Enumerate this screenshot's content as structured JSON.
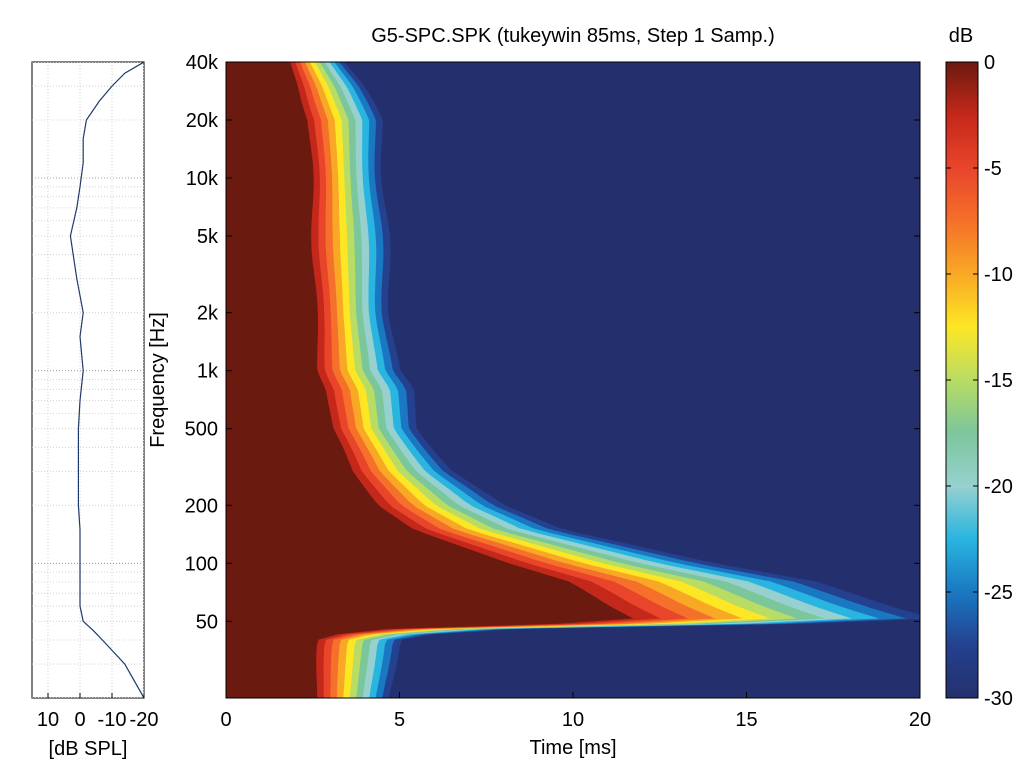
{
  "chart_data": [
    {
      "type": "line",
      "xlabel": "[dB SPL]",
      "x_ticks": [
        "10",
        "0",
        "-10",
        "-20"
      ],
      "x_tick_values": [
        10,
        0,
        -10,
        -20
      ],
      "xlim": [
        15,
        -20
      ],
      "y_scale": "log",
      "ylim": [
        20,
        40000
      ],
      "grid": true,
      "series": [
        {
          "freq": [
            20,
            30,
            40,
            45,
            50,
            60,
            80,
            100,
            150,
            200,
            300,
            500,
            700,
            1000,
            1500,
            2000,
            3000,
            5000,
            7000,
            9000,
            12000,
            16000,
            20000,
            25000,
            30000,
            35000,
            40000
          ],
          "db": [
            -20,
            -14,
            -7,
            -4,
            -1,
            0,
            0,
            0,
            0,
            0.5,
            0.5,
            0.5,
            0,
            -1,
            0,
            -1,
            1,
            3,
            1,
            0,
            -1,
            -1,
            -2,
            -6,
            -10,
            -14,
            -20
          ]
        }
      ]
    },
    {
      "type": "heatmap",
      "title": "G5-SPC.SPK (tukeywin 85ms, Step 1 Samp.)",
      "xlabel": "Time [ms]",
      "ylabel": "Frequency [Hz]",
      "xlim": [
        0,
        20
      ],
      "x_ticks": [
        "0",
        "5",
        "10",
        "15",
        "20"
      ],
      "x_tick_values": [
        0,
        5,
        10,
        15,
        20
      ],
      "y_scale": "log",
      "ylim": [
        20,
        40000
      ],
      "y_ticks": [
        "40k",
        "20k",
        "10k",
        "5k",
        "2k",
        "1k",
        "500",
        "200",
        "100",
        "50"
      ],
      "y_tick_values": [
        40000,
        20000,
        10000,
        5000,
        2000,
        1000,
        500,
        200,
        100,
        50
      ],
      "decay_front": {
        "freq": [
          20,
          40,
          45,
          50,
          60,
          80,
          100,
          150,
          200,
          300,
          500,
          800,
          1000,
          2000,
          5000,
          10000,
          20000,
          30000,
          40000
        ],
        "time_ms": [
          4.6,
          4.8,
          6.5,
          20.5,
          19,
          17,
          14,
          9.5,
          7.8,
          6.4,
          5.4,
          5.2,
          4.8,
          4.6,
          4.5,
          4.4,
          4.3,
          3.8,
          3.3
        ]
      },
      "colorbar": {
        "label": "dB",
        "range": [
          -30,
          0
        ],
        "ticks": [
          "0",
          "-5",
          "-10",
          "-15",
          "-20",
          "-25",
          "-30"
        ],
        "tick_values": [
          0,
          -5,
          -10,
          -15,
          -20,
          -25,
          -30
        ],
        "colormap": [
          "#6b1a10",
          "#c4281a",
          "#e8452b",
          "#f5702a",
          "#f9a825",
          "#fde725",
          "#b9dc63",
          "#7cc69c",
          "#96d1cf",
          "#29b5e0",
          "#1a78c2",
          "#24418f",
          "#24306d"
        ]
      }
    }
  ]
}
